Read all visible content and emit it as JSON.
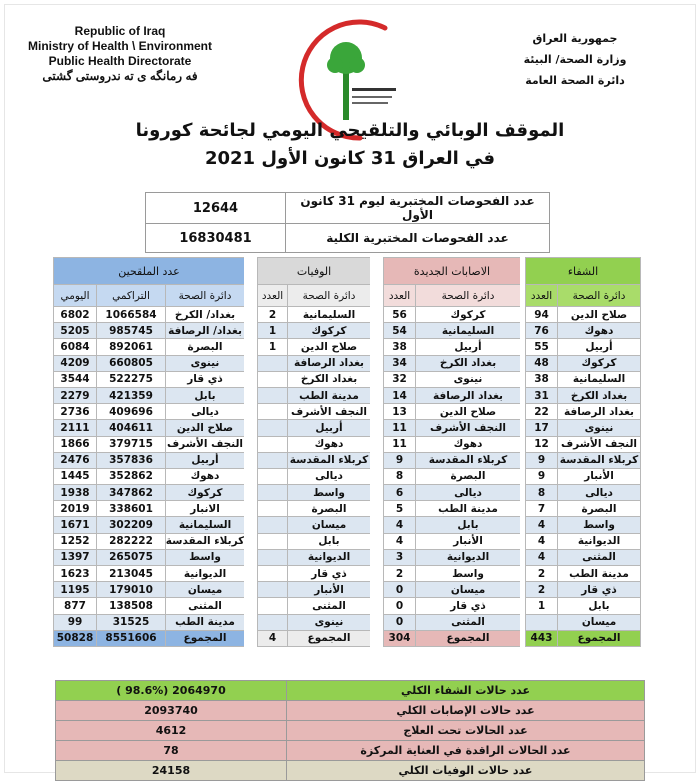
{
  "header": {
    "en": [
      "Republic of Iraq",
      "Ministry of Health \\ Environment",
      "Public Health Directorate",
      "فه رمانگه ی ته ندروستی گشتی"
    ],
    "ar": [
      "جمهورية العراق",
      "وزارة الصحة/ البيئة",
      "دائرة الصحة العامة"
    ],
    "logo_text": "وزارة الصحة العراقية Iraqi Ministry of Health Founded 1920"
  },
  "title": {
    "line1": "الموقف الوبائي والتلقيحي اليومي لجائحة كورونا",
    "line2": "في العراق  31  كانون الأول 2021"
  },
  "tests": [
    {
      "label": "عدد الفحوصات المختبرية  ليوم 31 كانون الأول",
      "value": "12644"
    },
    {
      "label": "عدد الفحوصات المختبرية الكلية",
      "value": "16830481"
    }
  ],
  "headers": {
    "vaccinated": "عدد الملقحين",
    "deaths": "الوفيات",
    "new_cases": "الاصابات الجديدة",
    "recovery": "الشفاء",
    "daily": "اليومي",
    "cumulative": "التراكمي",
    "province": "دائرة الصحة",
    "count": "العدد"
  },
  "rows": [
    {
      "v": [
        "بغداد/ الكرخ",
        "1066584",
        "6802"
      ],
      "d": [
        "السليمانية",
        "2"
      ],
      "c": [
        "كركوك",
        "56"
      ],
      "r": [
        "صلاح الدين",
        "94"
      ]
    },
    {
      "v": [
        "بغداد/ الرصافة",
        "985745",
        "5205"
      ],
      "d": [
        "كركوك",
        "1"
      ],
      "c": [
        "السليمانية",
        "54"
      ],
      "r": [
        "دهوك",
        "76"
      ]
    },
    {
      "v": [
        "البصرة",
        "892061",
        "6084"
      ],
      "d": [
        "صلاح الدين",
        "1"
      ],
      "c": [
        "أربيل",
        "38"
      ],
      "r": [
        "أربيل",
        "55"
      ]
    },
    {
      "v": [
        "نينوى",
        "660805",
        "4209"
      ],
      "d": [
        "بغداد الرصافة",
        ""
      ],
      "c": [
        "بغداد الكرخ",
        "34"
      ],
      "r": [
        "كركوك",
        "48"
      ]
    },
    {
      "v": [
        "ذي قار",
        "522275",
        "3544"
      ],
      "d": [
        "بغداد الكرخ",
        ""
      ],
      "c": [
        "نينوى",
        "32"
      ],
      "r": [
        "السليمانية",
        "38"
      ]
    },
    {
      "v": [
        "بابل",
        "421359",
        "2279"
      ],
      "d": [
        "مدينة الطب",
        ""
      ],
      "c": [
        "بغداد الرصافة",
        "14"
      ],
      "r": [
        "بغداد الكرخ",
        "31"
      ]
    },
    {
      "v": [
        "ديالى",
        "409696",
        "2736"
      ],
      "d": [
        "النجف الأشرف",
        ""
      ],
      "c": [
        "صلاح الدين",
        "13"
      ],
      "r": [
        "بغداد الرصافة",
        "22"
      ]
    },
    {
      "v": [
        "صلاح الدين",
        "404611",
        "2111"
      ],
      "d": [
        "أربيل",
        ""
      ],
      "c": [
        "النجف الأشرف",
        "11"
      ],
      "r": [
        "نينوى",
        "17"
      ]
    },
    {
      "v": [
        "النجف الأشرف",
        "379715",
        "1866"
      ],
      "d": [
        "دهوك",
        ""
      ],
      "c": [
        "دهوك",
        "11"
      ],
      "r": [
        "النجف الأشرف",
        "12"
      ]
    },
    {
      "v": [
        "أربيل",
        "357836",
        "2476"
      ],
      "d": [
        "كربلاء المقدسة",
        ""
      ],
      "c": [
        "كربلاء المقدسة",
        "9"
      ],
      "r": [
        "كربلاء المقدسة",
        "9"
      ]
    },
    {
      "v": [
        "دهوك",
        "352862",
        "1445"
      ],
      "d": [
        "ديالى",
        ""
      ],
      "c": [
        "البصرة",
        "8"
      ],
      "r": [
        "الأنبار",
        "9"
      ]
    },
    {
      "v": [
        "كركوك",
        "347862",
        "1938"
      ],
      "d": [
        "واسط",
        ""
      ],
      "c": [
        "ديالى",
        "6"
      ],
      "r": [
        "ديالى",
        "8"
      ]
    },
    {
      "v": [
        "الانبار",
        "338601",
        "2019"
      ],
      "d": [
        "البصرة",
        ""
      ],
      "c": [
        "مدينة الطب",
        "5"
      ],
      "r": [
        "البصرة",
        "7"
      ]
    },
    {
      "v": [
        "السليمانية",
        "302209",
        "1671"
      ],
      "d": [
        "ميسان",
        ""
      ],
      "c": [
        "بابل",
        "4"
      ],
      "r": [
        "واسط",
        "4"
      ]
    },
    {
      "v": [
        "كربلاء المقدسة",
        "282222",
        "1252"
      ],
      "d": [
        "بابل",
        ""
      ],
      "c": [
        "الأنبار",
        "4"
      ],
      "r": [
        "الديوانية",
        "4"
      ]
    },
    {
      "v": [
        "واسط",
        "265075",
        "1397"
      ],
      "d": [
        "الديوانية",
        ""
      ],
      "c": [
        "الديوانية",
        "3"
      ],
      "r": [
        "المثنى",
        "4"
      ]
    },
    {
      "v": [
        "الديوانية",
        "213045",
        "1623"
      ],
      "d": [
        "ذي قار",
        ""
      ],
      "c": [
        "واسط",
        "2"
      ],
      "r": [
        "مدينة الطب",
        "2"
      ]
    },
    {
      "v": [
        "ميسان",
        "179010",
        "1195"
      ],
      "d": [
        "الأنبار",
        ""
      ],
      "c": [
        "ميسان",
        "0"
      ],
      "r": [
        "ذي قار",
        "2"
      ]
    },
    {
      "v": [
        "المثنى",
        "138508",
        "877"
      ],
      "d": [
        "المثنى",
        ""
      ],
      "c": [
        "ذي قار",
        "0"
      ],
      "r": [
        "بابل",
        "1"
      ]
    },
    {
      "v": [
        "مدينة الطب",
        "31525",
        "99"
      ],
      "d": [
        "نينوى",
        ""
      ],
      "c": [
        "المثنى",
        "0"
      ],
      "r": [
        "ميسان",
        ""
      ]
    }
  ],
  "totals": {
    "label": "المجموع",
    "v_cumulative": "8551606",
    "v_daily": "50828",
    "deaths": "4",
    "new_cases": "304",
    "recovery": "443"
  },
  "summary": [
    {
      "label": "عدد حالات الشفاء الكلي",
      "value": "( 98.6%)  2064970",
      "color": "#92d050"
    },
    {
      "label": "عدد حالات الإصابات الكلي",
      "value": "2093740",
      "color": "#e6b8b7"
    },
    {
      "label": "عدد الحالات تحت العلاج",
      "value": "4612",
      "color": "#e6b8b7"
    },
    {
      "label": "عدد الحالات الراقدة في العناية المركزة",
      "value": "78",
      "color": "#e6b8b7"
    },
    {
      "label": "عدد حالات الوفيات الكلي",
      "value": "24158",
      "color": "#ddd9c4"
    }
  ]
}
